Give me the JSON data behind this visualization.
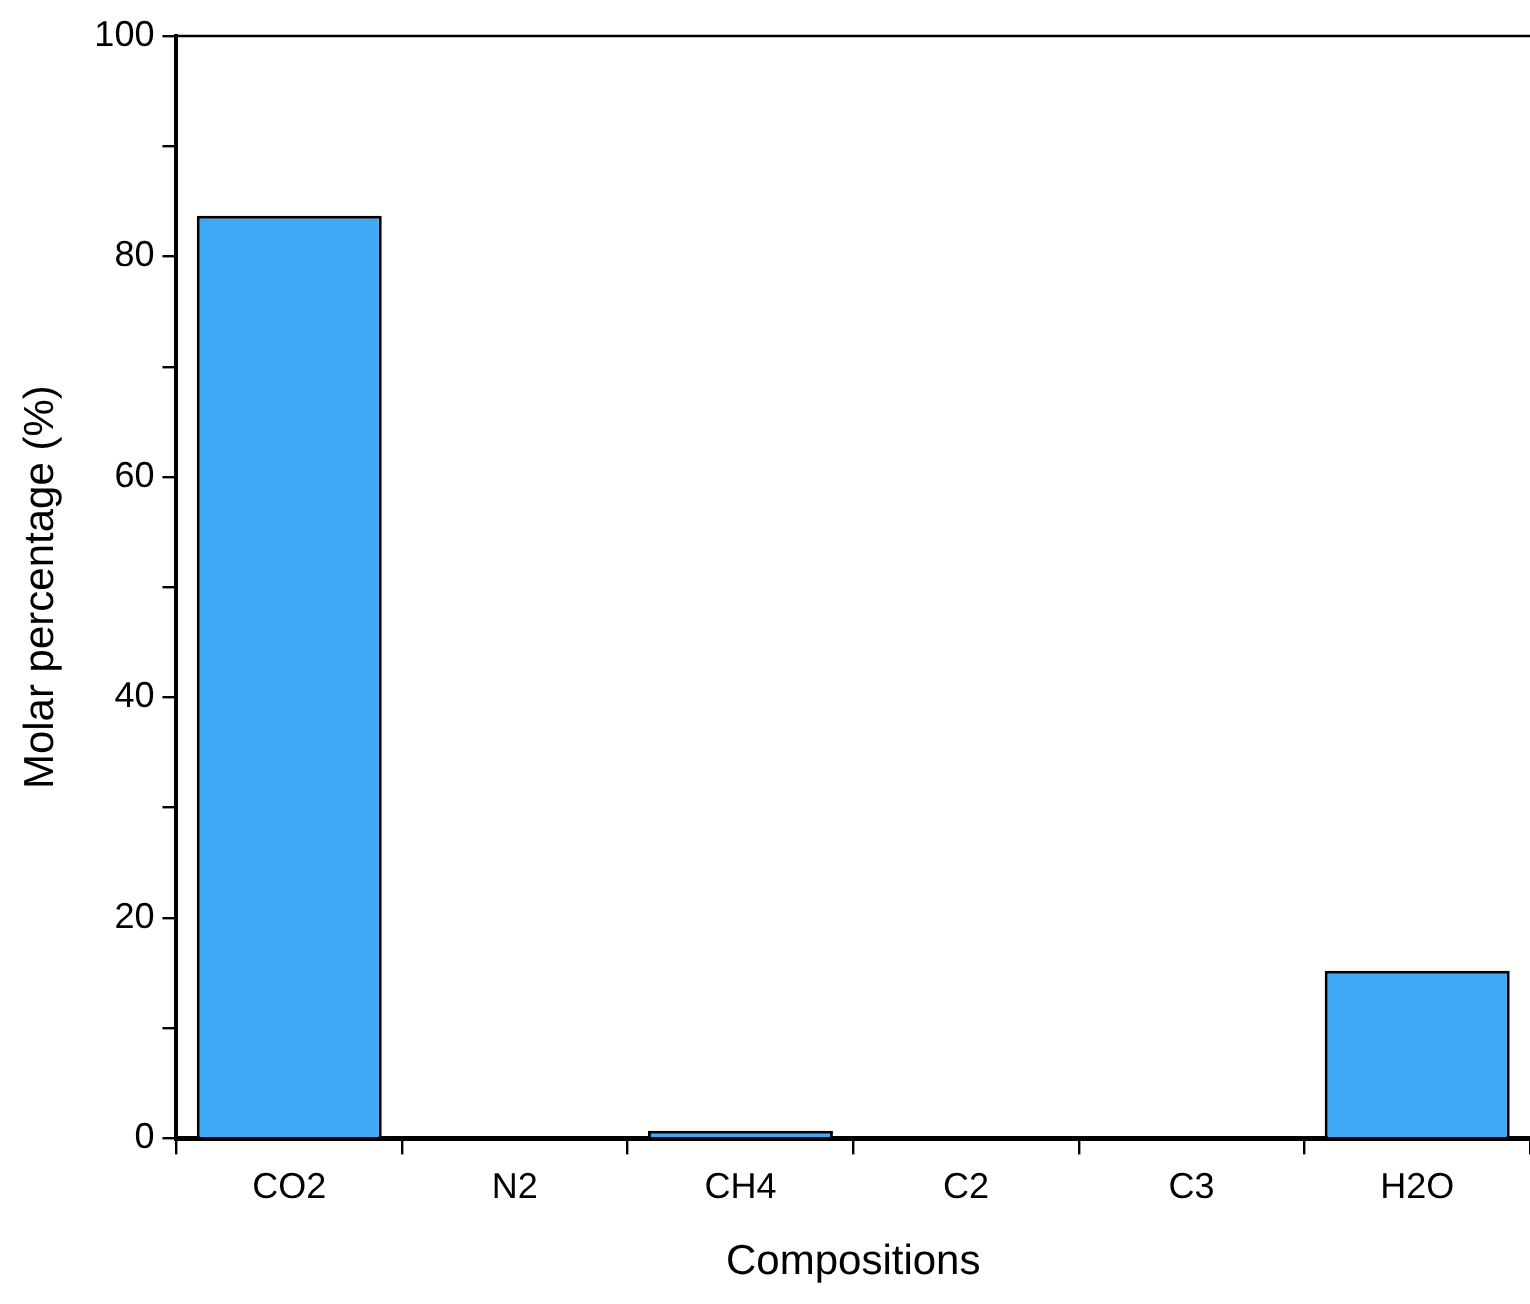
{
  "chart_data": {
    "type": "bar",
    "xlabel": "Compositions",
    "ylabel": "Molar percentage (%)",
    "categories": [
      "CO2",
      "N2",
      "CH4",
      "C2",
      "C3",
      "H2O"
    ],
    "values": [
      83.7,
      0,
      0.7,
      0,
      0,
      15.2
    ],
    "color": "#3fa9f5",
    "ylim": [
      0,
      100
    ],
    "yticks": [
      0,
      {
        "value": 10,
        "label": null
      },
      20,
      {
        "value": 30,
        "label": null
      },
      40,
      {
        "value": 50,
        "label": null
      },
      60,
      {
        "value": 70,
        "label": null
      },
      80,
      {
        "value": 90,
        "label": null
      },
      100
    ],
    "grid": false,
    "legend": false
  }
}
